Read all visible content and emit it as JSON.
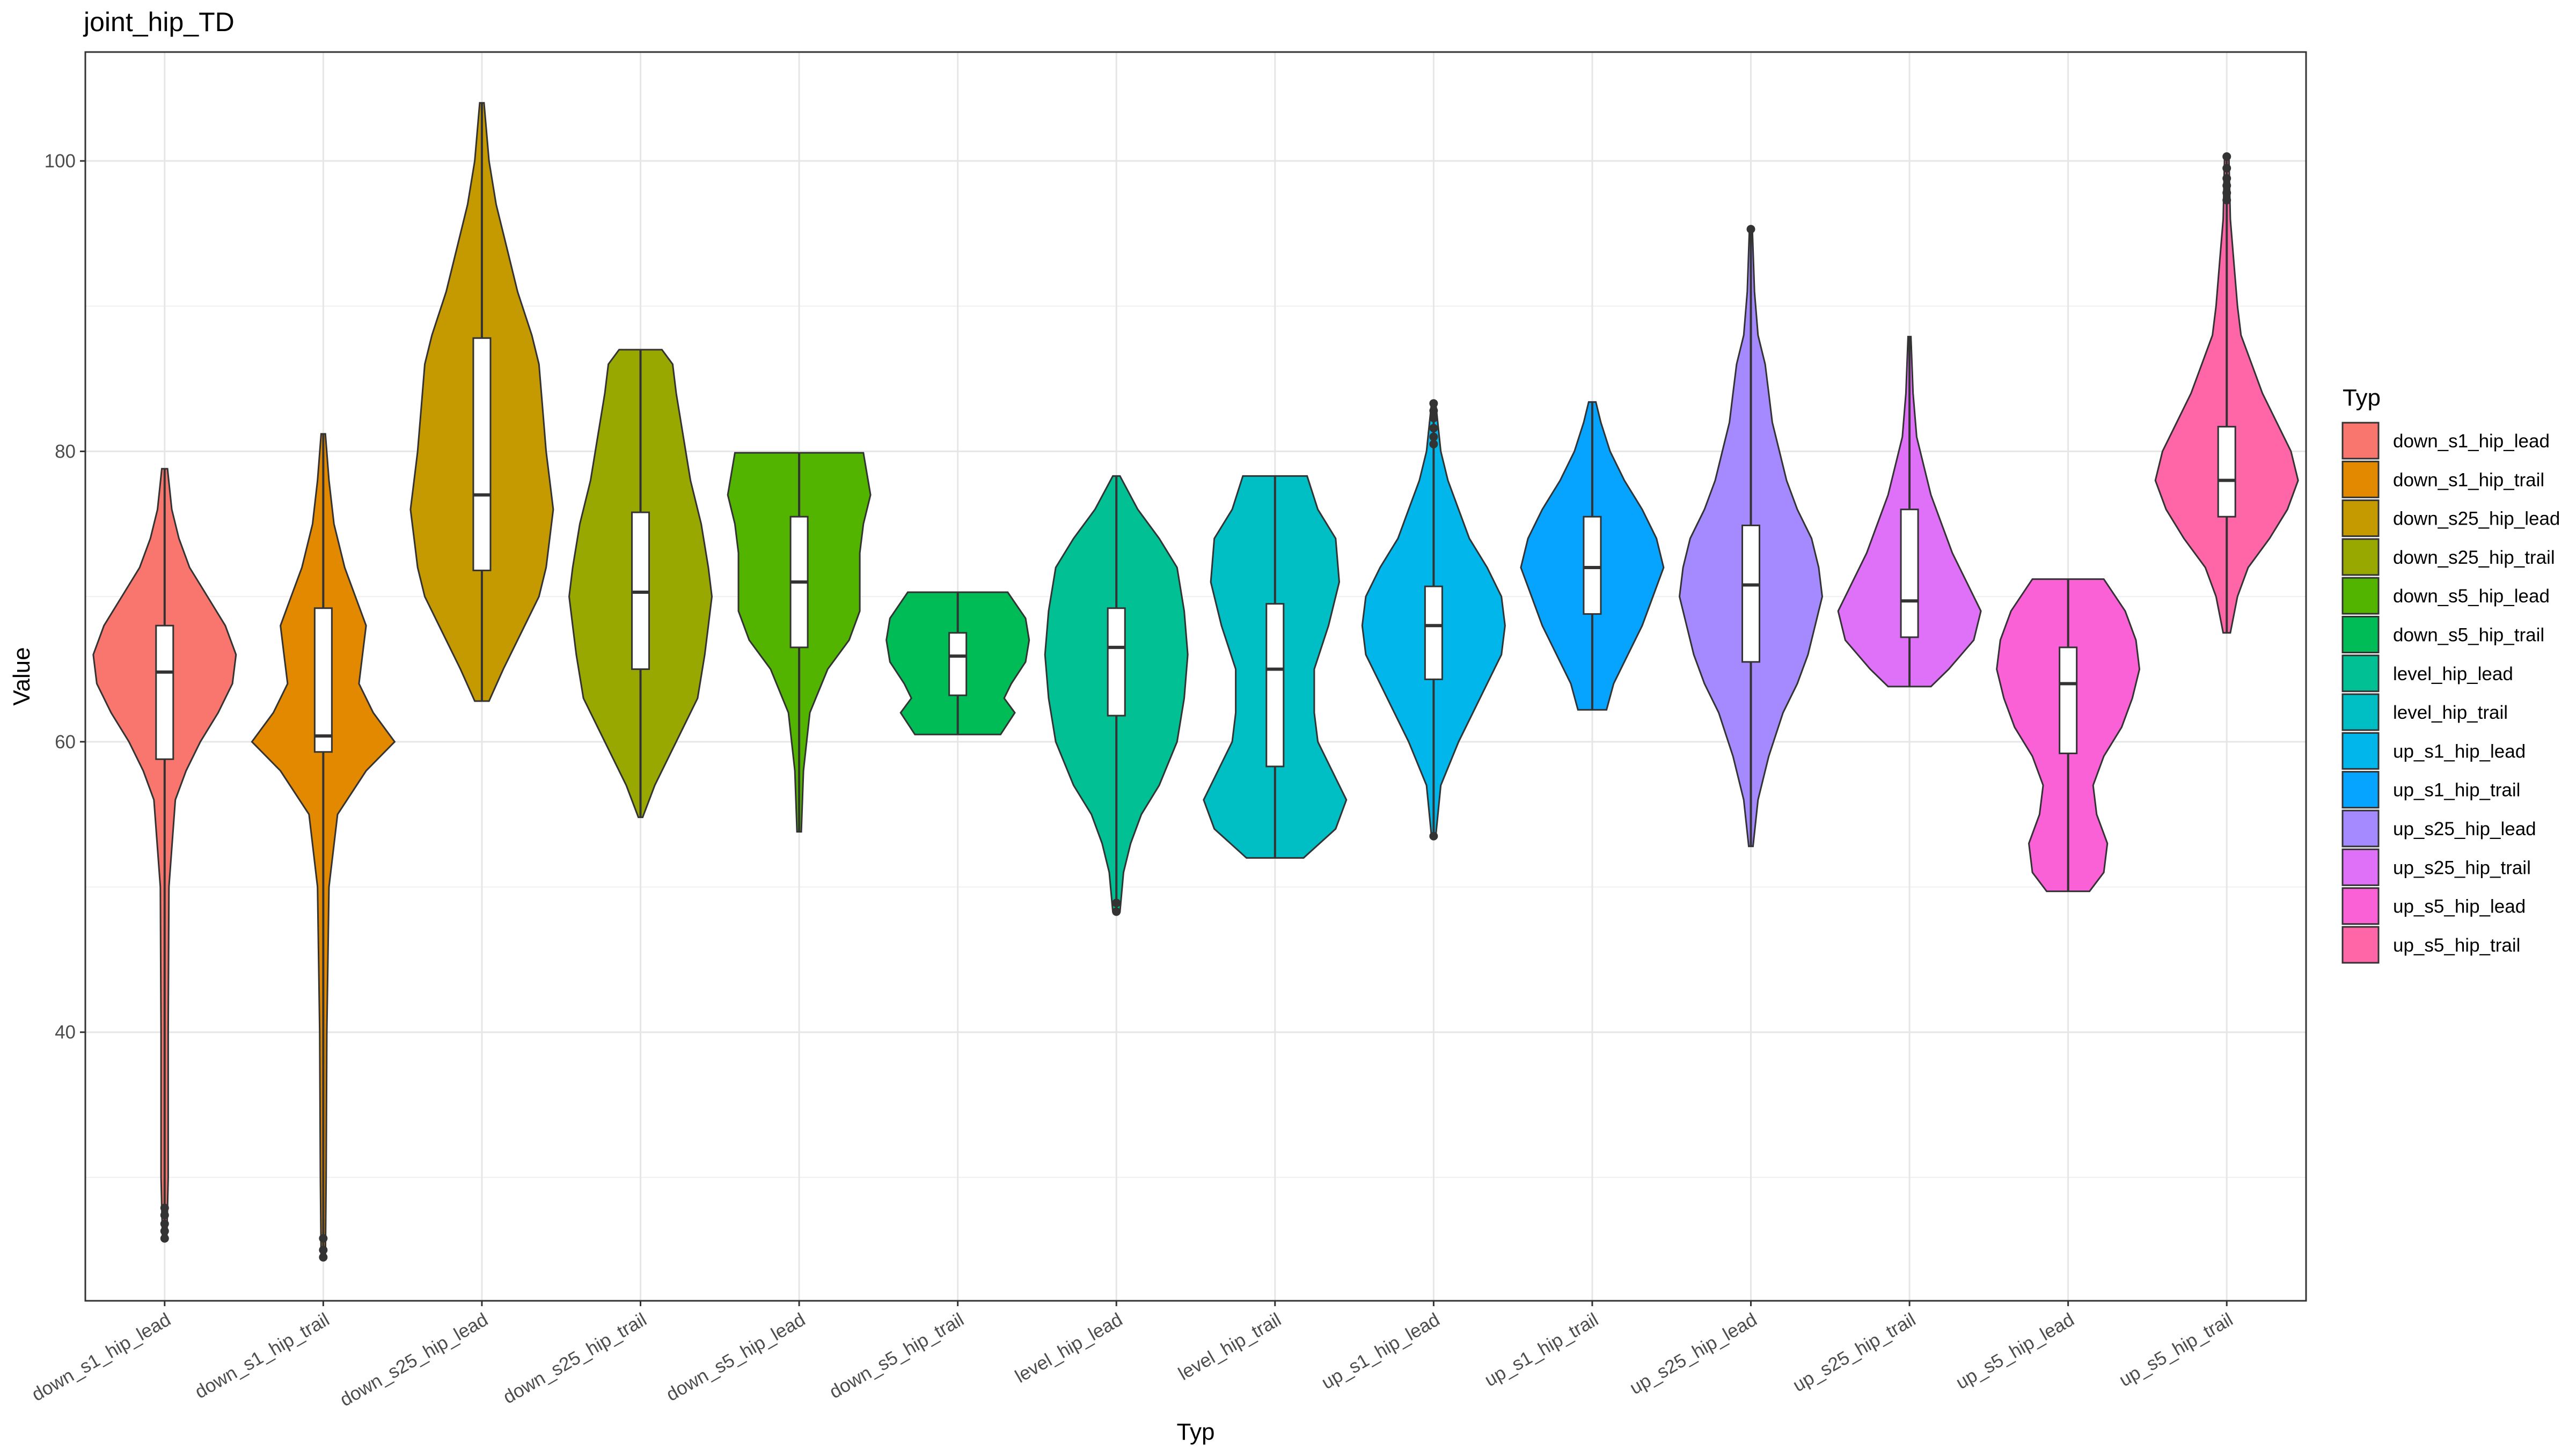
{
  "chart_data": {
    "type": "violin",
    "title": "joint_hip_TD",
    "xlabel": "Typ",
    "ylabel": "Value",
    "ylim": [
      21.5,
      107.5
    ],
    "yticks": [
      40,
      60,
      80,
      100
    ],
    "grid": true,
    "legend": {
      "title": "Typ",
      "placement": "right"
    },
    "categories": [
      "down_s1_hip_lead",
      "down_s1_hip_trail",
      "down_s25_hip_lead",
      "down_s25_hip_trail",
      "down_s5_hip_lead",
      "down_s5_hip_trail",
      "level_hip_lead",
      "level_hip_trail",
      "up_s1_hip_lead",
      "up_s1_hip_trail",
      "up_s25_hip_lead",
      "up_s25_hip_trail",
      "up_s5_hip_lead",
      "up_s5_hip_trail"
    ],
    "colors": [
      "#F8766D",
      "#E38900",
      "#C49A00",
      "#99A800",
      "#53B400",
      "#00BC56",
      "#00C094",
      "#00BFC4",
      "#00B6EB",
      "#06A4FF",
      "#A58AFF",
      "#DF70F8",
      "#FB61D7",
      "#FF66A8"
    ],
    "series": [
      {
        "name": "down_s1_hip_lead",
        "min": 25.8,
        "q1": 58.8,
        "median": 64.8,
        "q3": 68.0,
        "max": 78.8,
        "outliers": [
          25.8,
          26.3,
          26.8,
          27.4,
          27.9
        ],
        "density": [
          [
            25.8,
            0.03
          ],
          [
            30,
            0.05
          ],
          [
            40,
            0.05
          ],
          [
            50,
            0.06
          ],
          [
            56,
            0.15
          ],
          [
            58,
            0.3
          ],
          [
            60,
            0.5
          ],
          [
            62,
            0.75
          ],
          [
            64,
            0.95
          ],
          [
            66,
            1.0
          ],
          [
            68,
            0.85
          ],
          [
            70,
            0.6
          ],
          [
            72,
            0.35
          ],
          [
            74,
            0.2
          ],
          [
            76,
            0.1
          ],
          [
            78.8,
            0.04
          ]
        ]
      },
      {
        "name": "down_s1_hip_trail",
        "min": 24.5,
        "q1": 59.3,
        "median": 60.4,
        "q3": 69.2,
        "max": 81.2,
        "outliers": [
          24.5,
          25.0,
          25.8
        ],
        "density": [
          [
            24.5,
            0.03
          ],
          [
            30,
            0.04
          ],
          [
            40,
            0.05
          ],
          [
            50,
            0.08
          ],
          [
            55,
            0.2
          ],
          [
            58,
            0.6
          ],
          [
            60,
            1.0
          ],
          [
            62,
            0.7
          ],
          [
            64,
            0.5
          ],
          [
            66,
            0.55
          ],
          [
            68,
            0.6
          ],
          [
            70,
            0.45
          ],
          [
            72,
            0.3
          ],
          [
            75,
            0.15
          ],
          [
            78,
            0.08
          ],
          [
            81.2,
            0.03
          ]
        ]
      },
      {
        "name": "down_s25_hip_lead",
        "min": 62.8,
        "q1": 71.8,
        "median": 77.0,
        "q3": 87.8,
        "max": 104.0,
        "outliers": [],
        "density": [
          [
            62.8,
            0.1
          ],
          [
            65,
            0.3
          ],
          [
            68,
            0.6
          ],
          [
            70,
            0.8
          ],
          [
            72,
            0.9
          ],
          [
            74,
            0.95
          ],
          [
            76,
            1.0
          ],
          [
            78,
            0.95
          ],
          [
            80,
            0.9
          ],
          [
            83,
            0.85
          ],
          [
            86,
            0.8
          ],
          [
            88,
            0.7
          ],
          [
            91,
            0.5
          ],
          [
            94,
            0.35
          ],
          [
            97,
            0.2
          ],
          [
            100,
            0.1
          ],
          [
            104,
            0.03
          ]
        ]
      },
      {
        "name": "down_s25_hip_trail",
        "min": 54.8,
        "q1": 65.0,
        "median": 70.3,
        "q3": 75.8,
        "max": 87.0,
        "outliers": [],
        "density": [
          [
            54.8,
            0.03
          ],
          [
            57,
            0.2
          ],
          [
            60,
            0.5
          ],
          [
            63,
            0.8
          ],
          [
            66,
            0.9
          ],
          [
            68,
            0.95
          ],
          [
            70,
            1.0
          ],
          [
            72,
            0.95
          ],
          [
            75,
            0.85
          ],
          [
            78,
            0.7
          ],
          [
            81,
            0.6
          ],
          [
            84,
            0.5
          ],
          [
            86,
            0.45
          ],
          [
            87,
            0.3
          ]
        ]
      },
      {
        "name": "down_s5_hip_lead",
        "min": 53.8,
        "q1": 66.5,
        "median": 71.0,
        "q3": 75.5,
        "max": 79.9,
        "outliers": [],
        "density": [
          [
            53.8,
            0.03
          ],
          [
            58,
            0.06
          ],
          [
            62,
            0.15
          ],
          [
            65,
            0.4
          ],
          [
            67,
            0.7
          ],
          [
            69,
            0.85
          ],
          [
            71,
            0.85
          ],
          [
            73,
            0.85
          ],
          [
            75,
            0.9
          ],
          [
            77,
            1.0
          ],
          [
            79.9,
            0.9
          ]
        ]
      },
      {
        "name": "down_s5_hip_trail",
        "min": 60.5,
        "q1": 63.2,
        "median": 65.9,
        "q3": 67.5,
        "max": 70.3,
        "outliers": [],
        "density": [
          [
            60.5,
            0.6
          ],
          [
            62,
            0.8
          ],
          [
            63,
            0.65
          ],
          [
            64,
            0.75
          ],
          [
            65.5,
            0.95
          ],
          [
            67,
            1.0
          ],
          [
            68.5,
            0.95
          ],
          [
            70.3,
            0.7
          ]
        ]
      },
      {
        "name": "level_hip_lead",
        "min": 48.3,
        "q1": 61.8,
        "median": 66.5,
        "q3": 69.2,
        "max": 78.3,
        "outliers": [
          48.3,
          48.9
        ],
        "density": [
          [
            48.3,
            0.05
          ],
          [
            51,
            0.1
          ],
          [
            53,
            0.2
          ],
          [
            55,
            0.35
          ],
          [
            57,
            0.6
          ],
          [
            60,
            0.85
          ],
          [
            63,
            0.95
          ],
          [
            66,
            1.0
          ],
          [
            69,
            0.95
          ],
          [
            72,
            0.85
          ],
          [
            74,
            0.6
          ],
          [
            76,
            0.3
          ],
          [
            78.3,
            0.05
          ]
        ]
      },
      {
        "name": "level_hip_trail",
        "min": 52.0,
        "q1": 58.3,
        "median": 65.0,
        "q3": 69.5,
        "max": 78.3,
        "outliers": [],
        "density": [
          [
            52,
            0.4
          ],
          [
            54,
            0.85
          ],
          [
            56,
            1.0
          ],
          [
            58,
            0.8
          ],
          [
            60,
            0.6
          ],
          [
            62,
            0.55
          ],
          [
            65,
            0.55
          ],
          [
            68,
            0.75
          ],
          [
            71,
            0.9
          ],
          [
            74,
            0.85
          ],
          [
            76,
            0.6
          ],
          [
            78.3,
            0.45
          ]
        ]
      },
      {
        "name": "up_s1_hip_lead",
        "min": 53.5,
        "q1": 64.3,
        "median": 68.0,
        "q3": 70.7,
        "max": 83.3,
        "outliers": [
          53.5,
          80.5,
          81.0,
          81.6,
          82.3,
          82.8,
          83.3
        ],
        "density": [
          [
            53.5,
            0.03
          ],
          [
            57,
            0.1
          ],
          [
            60,
            0.35
          ],
          [
            62,
            0.55
          ],
          [
            64,
            0.75
          ],
          [
            66,
            0.95
          ],
          [
            68,
            1.0
          ],
          [
            70,
            0.95
          ],
          [
            72,
            0.75
          ],
          [
            74,
            0.5
          ],
          [
            76,
            0.35
          ],
          [
            78,
            0.2
          ],
          [
            80,
            0.1
          ],
          [
            83.3,
            0.03
          ]
        ]
      },
      {
        "name": "up_s1_hip_trail",
        "min": 62.2,
        "q1": 68.8,
        "median": 72.0,
        "q3": 75.5,
        "max": 83.4,
        "outliers": [],
        "density": [
          [
            62.2,
            0.2
          ],
          [
            64,
            0.3
          ],
          [
            66,
            0.5
          ],
          [
            68,
            0.7
          ],
          [
            70,
            0.85
          ],
          [
            72,
            1.0
          ],
          [
            74,
            0.9
          ],
          [
            76,
            0.7
          ],
          [
            78,
            0.45
          ],
          [
            80,
            0.25
          ],
          [
            82,
            0.12
          ],
          [
            83.4,
            0.05
          ]
        ]
      },
      {
        "name": "up_s25_hip_lead",
        "min": 52.8,
        "q1": 65.5,
        "median": 70.8,
        "q3": 74.9,
        "max": 95.3,
        "outliers": [
          95.3
        ],
        "density": [
          [
            52.8,
            0.03
          ],
          [
            56,
            0.1
          ],
          [
            59,
            0.25
          ],
          [
            62,
            0.45
          ],
          [
            64,
            0.65
          ],
          [
            66,
            0.8
          ],
          [
            68,
            0.9
          ],
          [
            70,
            1.0
          ],
          [
            72,
            0.95
          ],
          [
            74,
            0.85
          ],
          [
            76,
            0.65
          ],
          [
            78,
            0.5
          ],
          [
            80,
            0.4
          ],
          [
            82,
            0.3
          ],
          [
            84,
            0.25
          ],
          [
            86,
            0.2
          ],
          [
            88,
            0.1
          ],
          [
            91,
            0.05
          ],
          [
            95.3,
            0.02
          ]
        ]
      },
      {
        "name": "up_s25_hip_trail",
        "min": 63.8,
        "q1": 67.2,
        "median": 69.7,
        "q3": 76.0,
        "max": 87.9,
        "outliers": [],
        "density": [
          [
            63.8,
            0.3
          ],
          [
            65,
            0.55
          ],
          [
            67,
            0.9
          ],
          [
            69,
            1.0
          ],
          [
            71,
            0.8
          ],
          [
            73,
            0.6
          ],
          [
            75,
            0.45
          ],
          [
            77,
            0.3
          ],
          [
            79,
            0.2
          ],
          [
            81,
            0.1
          ],
          [
            84,
            0.05
          ],
          [
            87.9,
            0.02
          ]
        ]
      },
      {
        "name": "up_s5_hip_lead",
        "min": 49.7,
        "q1": 59.2,
        "median": 64.0,
        "q3": 66.5,
        "max": 71.2,
        "outliers": [],
        "density": [
          [
            49.7,
            0.3
          ],
          [
            51,
            0.5
          ],
          [
            53,
            0.55
          ],
          [
            55,
            0.4
          ],
          [
            57,
            0.35
          ],
          [
            59,
            0.5
          ],
          [
            61,
            0.75
          ],
          [
            63,
            0.9
          ],
          [
            65,
            1.0
          ],
          [
            67,
            0.95
          ],
          [
            69,
            0.8
          ],
          [
            71.2,
            0.5
          ]
        ]
      },
      {
        "name": "up_s5_hip_trail",
        "min": 67.5,
        "q1": 75.5,
        "median": 78.0,
        "q3": 81.7,
        "max": 100.3,
        "outliers": [
          97.3,
          97.8,
          98.3,
          98.8,
          99.5,
          100.3
        ],
        "density": [
          [
            67.5,
            0.05
          ],
          [
            70,
            0.15
          ],
          [
            72,
            0.3
          ],
          [
            74,
            0.6
          ],
          [
            76,
            0.85
          ],
          [
            78,
            1.0
          ],
          [
            80,
            0.9
          ],
          [
            82,
            0.7
          ],
          [
            84,
            0.5
          ],
          [
            86,
            0.35
          ],
          [
            88,
            0.2
          ],
          [
            90,
            0.15
          ],
          [
            93,
            0.1
          ],
          [
            96,
            0.05
          ],
          [
            100.3,
            0.03
          ]
        ]
      }
    ]
  }
}
